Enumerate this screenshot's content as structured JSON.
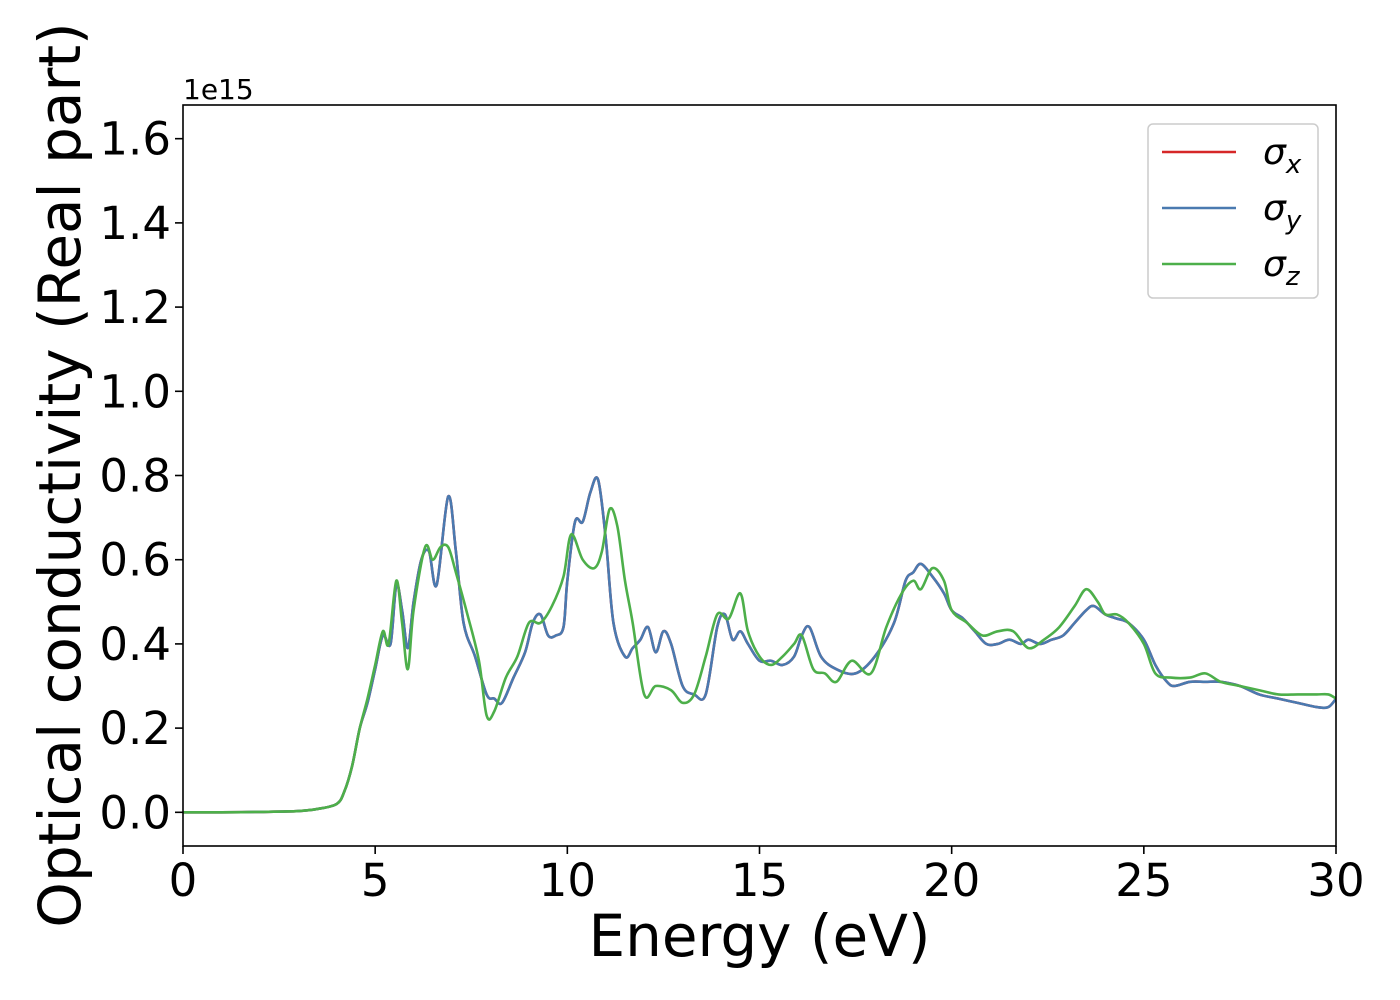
{
  "chart_data": {
    "type": "line",
    "xlabel": "Energy (eV)",
    "ylabel": "Optical conductivity (Real part)",
    "y_offset_text": "1e15",
    "xlim": [
      0,
      30
    ],
    "ylim": [
      -0.08,
      1.68
    ],
    "x_ticks": [
      0,
      5,
      10,
      15,
      20,
      25,
      30
    ],
    "x_tick_labels": [
      "0",
      "5",
      "10",
      "15",
      "20",
      "25",
      "30"
    ],
    "y_ticks": [
      0.0,
      0.2,
      0.4,
      0.6,
      0.8,
      1.0,
      1.2,
      1.4,
      1.6
    ],
    "y_tick_labels": [
      "0.0",
      "0.2",
      "0.4",
      "0.6",
      "0.8",
      "1.0",
      "1.2",
      "1.4",
      "1.6"
    ],
    "grid": false,
    "legend_position": "top-right",
    "series": [
      {
        "name": "σx",
        "symbol": "σ",
        "subscript": "x",
        "color": "#d62728",
        "x": [
          0,
          1,
          2,
          3,
          3.5,
          4.0,
          4.2,
          4.4,
          4.6,
          4.8,
          5.0,
          5.2,
          5.4,
          5.55,
          5.7,
          5.85,
          6.0,
          6.2,
          6.4,
          6.6,
          6.9,
          7.1,
          7.3,
          7.6,
          7.9,
          8.1,
          8.3,
          8.6,
          8.9,
          9.1,
          9.3,
          9.5,
          9.7,
          9.9,
          10.0,
          10.2,
          10.4,
          10.6,
          10.8,
          11.0,
          11.2,
          11.5,
          11.7,
          11.9,
          12.1,
          12.3,
          12.5,
          12.7,
          13.0,
          13.3,
          13.6,
          13.9,
          14.1,
          14.3,
          14.5,
          14.7,
          15.0,
          15.3,
          15.6,
          15.9,
          16.1,
          16.3,
          16.6,
          17.0,
          17.5,
          18.0,
          18.5,
          18.8,
          19.0,
          19.2,
          19.5,
          19.8,
          20.0,
          20.3,
          20.6,
          20.9,
          21.2,
          21.5,
          21.8,
          22.0,
          22.3,
          22.6,
          22.9,
          23.2,
          23.5,
          23.7,
          24.0,
          24.3,
          24.6,
          25.0,
          25.3,
          25.6,
          25.8,
          26.2,
          26.6,
          27.0,
          27.5,
          28.0,
          28.5,
          29.0,
          29.5,
          29.8,
          30
        ],
        "values": [
          0.0,
          0.0,
          0.001,
          0.003,
          0.008,
          0.02,
          0.05,
          0.11,
          0.2,
          0.26,
          0.34,
          0.42,
          0.4,
          0.54,
          0.48,
          0.39,
          0.5,
          0.6,
          0.62,
          0.54,
          0.75,
          0.62,
          0.45,
          0.37,
          0.28,
          0.27,
          0.26,
          0.32,
          0.38,
          0.45,
          0.47,
          0.42,
          0.42,
          0.44,
          0.55,
          0.69,
          0.69,
          0.76,
          0.79,
          0.65,
          0.45,
          0.37,
          0.39,
          0.41,
          0.44,
          0.38,
          0.43,
          0.4,
          0.3,
          0.28,
          0.28,
          0.44,
          0.47,
          0.41,
          0.43,
          0.4,
          0.36,
          0.36,
          0.35,
          0.37,
          0.42,
          0.44,
          0.37,
          0.34,
          0.33,
          0.37,
          0.45,
          0.55,
          0.57,
          0.59,
          0.56,
          0.52,
          0.48,
          0.46,
          0.43,
          0.4,
          0.4,
          0.41,
          0.4,
          0.41,
          0.4,
          0.41,
          0.42,
          0.45,
          0.48,
          0.49,
          0.47,
          0.46,
          0.45,
          0.41,
          0.35,
          0.31,
          0.3,
          0.31,
          0.31,
          0.31,
          0.3,
          0.28,
          0.27,
          0.26,
          0.25,
          0.25,
          0.27
        ]
      },
      {
        "name": "σy",
        "symbol": "σ",
        "subscript": "y",
        "color": "#4a7ab0",
        "x": [
          0,
          1,
          2,
          3,
          3.5,
          4.0,
          4.2,
          4.4,
          4.6,
          4.8,
          5.0,
          5.2,
          5.4,
          5.55,
          5.7,
          5.85,
          6.0,
          6.2,
          6.4,
          6.6,
          6.9,
          7.1,
          7.3,
          7.6,
          7.9,
          8.1,
          8.3,
          8.6,
          8.9,
          9.1,
          9.3,
          9.5,
          9.7,
          9.9,
          10.0,
          10.2,
          10.4,
          10.6,
          10.8,
          11.0,
          11.2,
          11.5,
          11.7,
          11.9,
          12.1,
          12.3,
          12.5,
          12.7,
          13.0,
          13.3,
          13.6,
          13.9,
          14.1,
          14.3,
          14.5,
          14.7,
          15.0,
          15.3,
          15.6,
          15.9,
          16.1,
          16.3,
          16.6,
          17.0,
          17.5,
          18.0,
          18.5,
          18.8,
          19.0,
          19.2,
          19.5,
          19.8,
          20.0,
          20.3,
          20.6,
          20.9,
          21.2,
          21.5,
          21.8,
          22.0,
          22.3,
          22.6,
          22.9,
          23.2,
          23.5,
          23.7,
          24.0,
          24.3,
          24.6,
          25.0,
          25.3,
          25.6,
          25.8,
          26.2,
          26.6,
          27.0,
          27.5,
          28.0,
          28.5,
          29.0,
          29.5,
          29.8,
          30
        ],
        "values": [
          0.0,
          0.0,
          0.001,
          0.003,
          0.008,
          0.02,
          0.05,
          0.11,
          0.2,
          0.26,
          0.34,
          0.42,
          0.4,
          0.54,
          0.48,
          0.39,
          0.5,
          0.6,
          0.62,
          0.54,
          0.75,
          0.62,
          0.45,
          0.37,
          0.28,
          0.27,
          0.26,
          0.32,
          0.38,
          0.45,
          0.47,
          0.42,
          0.42,
          0.44,
          0.55,
          0.69,
          0.69,
          0.76,
          0.79,
          0.65,
          0.45,
          0.37,
          0.39,
          0.41,
          0.44,
          0.38,
          0.43,
          0.4,
          0.3,
          0.28,
          0.28,
          0.44,
          0.47,
          0.41,
          0.43,
          0.4,
          0.36,
          0.36,
          0.35,
          0.37,
          0.42,
          0.44,
          0.37,
          0.34,
          0.33,
          0.37,
          0.45,
          0.55,
          0.57,
          0.59,
          0.56,
          0.52,
          0.48,
          0.46,
          0.43,
          0.4,
          0.4,
          0.41,
          0.4,
          0.41,
          0.4,
          0.41,
          0.42,
          0.45,
          0.48,
          0.49,
          0.47,
          0.46,
          0.45,
          0.41,
          0.35,
          0.31,
          0.3,
          0.31,
          0.31,
          0.31,
          0.3,
          0.28,
          0.27,
          0.26,
          0.25,
          0.25,
          0.27
        ]
      },
      {
        "name": "σz",
        "symbol": "σ",
        "subscript": "z",
        "color": "#4daf4a",
        "x": [
          0,
          1,
          2,
          3,
          3.5,
          4.0,
          4.2,
          4.4,
          4.6,
          4.8,
          5.0,
          5.2,
          5.35,
          5.55,
          5.7,
          5.85,
          6.0,
          6.3,
          6.5,
          6.7,
          6.9,
          7.1,
          7.4,
          7.7,
          7.9,
          8.1,
          8.4,
          8.7,
          9.0,
          9.3,
          9.6,
          9.9,
          10.1,
          10.4,
          10.7,
          10.9,
          11.1,
          11.3,
          11.5,
          11.7,
          12.0,
          12.3,
          12.7,
          13.0,
          13.3,
          13.6,
          13.9,
          14.2,
          14.5,
          14.7,
          15.0,
          15.3,
          15.6,
          15.9,
          16.1,
          16.4,
          16.7,
          17.0,
          17.4,
          17.9,
          18.3,
          18.7,
          19.0,
          19.2,
          19.5,
          19.8,
          20.0,
          20.4,
          20.8,
          21.2,
          21.6,
          22.0,
          22.4,
          22.8,
          23.2,
          23.5,
          23.8,
          24.0,
          24.3,
          24.6,
          25.0,
          25.3,
          25.7,
          26.2,
          26.6,
          27.0,
          27.5,
          28.0,
          28.5,
          29.0,
          29.5,
          29.8,
          30
        ],
        "values": [
          0.0,
          0.0,
          0.001,
          0.003,
          0.008,
          0.02,
          0.05,
          0.11,
          0.2,
          0.27,
          0.35,
          0.43,
          0.4,
          0.55,
          0.45,
          0.34,
          0.48,
          0.63,
          0.6,
          0.63,
          0.63,
          0.57,
          0.47,
          0.36,
          0.23,
          0.24,
          0.32,
          0.37,
          0.45,
          0.45,
          0.49,
          0.56,
          0.66,
          0.6,
          0.58,
          0.62,
          0.72,
          0.68,
          0.55,
          0.45,
          0.28,
          0.3,
          0.29,
          0.26,
          0.28,
          0.37,
          0.47,
          0.46,
          0.52,
          0.43,
          0.37,
          0.35,
          0.37,
          0.4,
          0.42,
          0.34,
          0.33,
          0.31,
          0.36,
          0.33,
          0.44,
          0.52,
          0.55,
          0.53,
          0.58,
          0.55,
          0.48,
          0.45,
          0.42,
          0.43,
          0.43,
          0.39,
          0.41,
          0.44,
          0.49,
          0.53,
          0.5,
          0.47,
          0.47,
          0.45,
          0.4,
          0.33,
          0.32,
          0.32,
          0.33,
          0.31,
          0.3,
          0.29,
          0.28,
          0.28,
          0.28,
          0.28,
          0.27
        ]
      }
    ]
  }
}
